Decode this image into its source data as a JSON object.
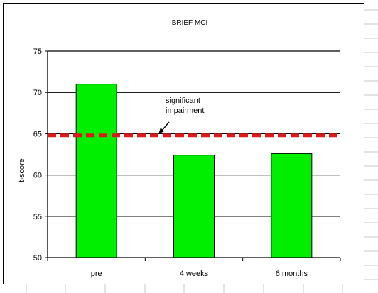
{
  "chart_data": {
    "type": "bar",
    "title": "BRIEF MCI",
    "xlabel": "",
    "ylabel": "t-score",
    "ylim": [
      50,
      75
    ],
    "yticks": [
      50,
      55,
      60,
      65,
      70,
      75
    ],
    "grid": true,
    "categories": [
      "pre",
      "4 weeks",
      "6 months"
    ],
    "values": [
      71,
      62.4,
      62.6
    ],
    "bar_color": "#00ee00",
    "reference_line": {
      "value": 64.8,
      "color": "#dd1a1a",
      "label_lines": [
        "significant",
        "impairment"
      ]
    }
  },
  "colors": {
    "spreadsheet_grid": "#c8c8c8",
    "plot_gridline": "#000000"
  }
}
